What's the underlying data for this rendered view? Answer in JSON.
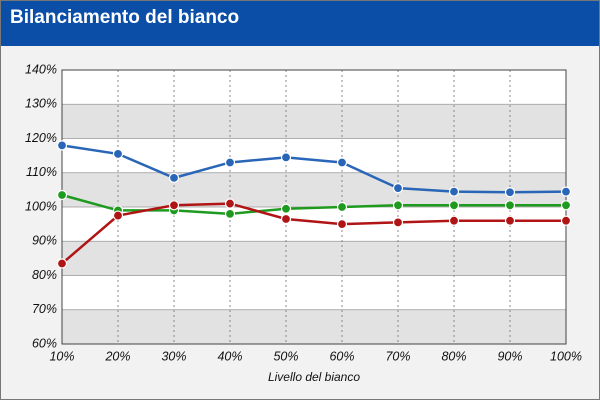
{
  "chart_data": {
    "type": "line",
    "title": "Bilanciamento del bianco",
    "x_label": "Livello del bianco",
    "categories": [
      "10%",
      "20%",
      "30%",
      "40%",
      "50%",
      "60%",
      "70%",
      "80%",
      "90%",
      "100%"
    ],
    "series": [
      {
        "color": "#2a66b8",
        "values": [
          118,
          115.5,
          108.5,
          113,
          114.5,
          113,
          105.5,
          104.5,
          104.3,
          104.5
        ]
      },
      {
        "color": "#1e9a1e",
        "values": [
          103.5,
          99,
          99,
          98,
          99.5,
          100,
          100.5,
          100.5,
          100.5,
          100.5
        ]
      },
      {
        "color": "#b01414",
        "values": [
          83.5,
          97.5,
          100.5,
          101,
          96.5,
          95,
          95.5,
          96,
          96,
          96
        ]
      }
    ],
    "ylim": [
      60,
      140
    ],
    "yticks": [
      {
        "value": 60,
        "label": "60%"
      },
      {
        "value": 70,
        "label": "70%"
      },
      {
        "value": 80,
        "label": "80%"
      },
      {
        "value": 90,
        "label": "90%"
      },
      {
        "value": 100,
        "label": "100%"
      },
      {
        "value": 110,
        "label": "110%"
      },
      {
        "value": 120,
        "label": "120%"
      },
      {
        "value": 130,
        "label": "130%"
      },
      {
        "value": 140,
        "label": "140%"
      }
    ],
    "grid": true
  }
}
